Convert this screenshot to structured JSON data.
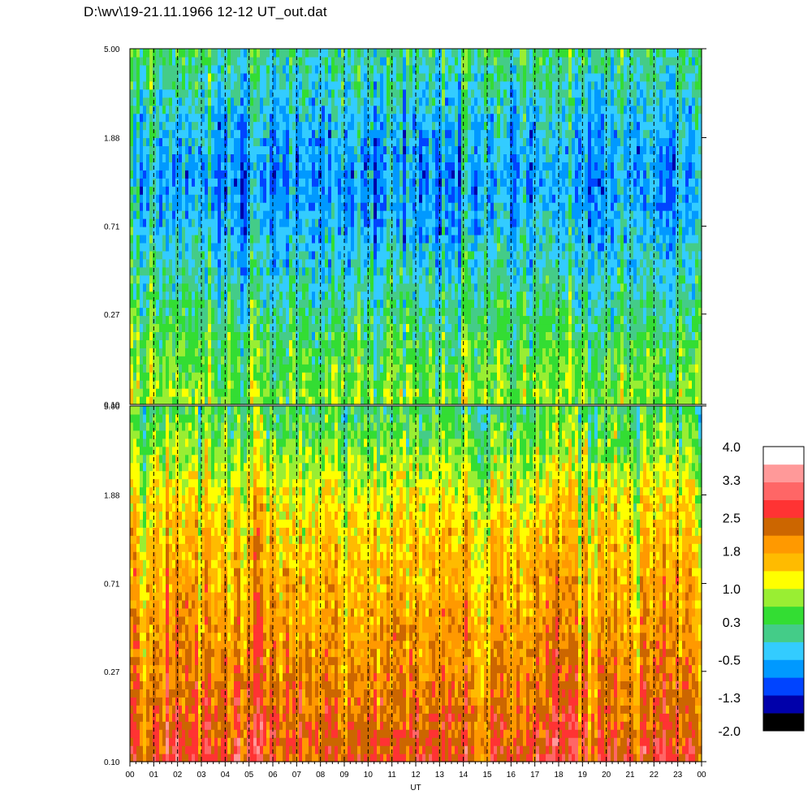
{
  "title": "D:\\wv\\19-21.11.1966  12-12 UT_out.dat",
  "chart_data": {
    "type": "heatmap",
    "panels": [
      {
        "name": "upper",
        "y_ticks": [
          "5.00",
          "1.88",
          "0.71",
          "0.27",
          "0.10"
        ],
        "y_tick_values": [
          5.0,
          1.88,
          0.71,
          0.27,
          0.1
        ],
        "ylim": [
          0.1,
          5.0
        ],
        "y_scale": "log",
        "level_profile": [
          0.8,
          0.5,
          0.2,
          -0.1,
          -0.4,
          -0.6,
          -0.4,
          0.2
        ],
        "profile_heights": [
          0.1,
          0.17,
          0.27,
          0.45,
          0.71,
          1.2,
          1.88,
          5.0
        ]
      },
      {
        "name": "lower",
        "y_ticks": [
          "5.00",
          "1.88",
          "0.71",
          "0.27",
          "0.10"
        ],
        "y_tick_values": [
          5.0,
          1.88,
          0.71,
          0.27,
          0.1
        ],
        "ylim": [
          0.1,
          5.0
        ],
        "y_scale": "log",
        "level_profile": [
          2.6,
          2.3,
          2.1,
          1.9,
          1.7,
          1.5,
          1.2,
          0.3
        ],
        "profile_heights": [
          0.1,
          0.17,
          0.27,
          0.45,
          0.71,
          1.2,
          1.88,
          5.0
        ]
      }
    ],
    "x_ticks": [
      "00",
      "01",
      "02",
      "03",
      "04",
      "05",
      "06",
      "07",
      "08",
      "09",
      "10",
      "11",
      "12",
      "13",
      "14",
      "15",
      "16",
      "17",
      "18",
      "19",
      "20",
      "21",
      "22",
      "23",
      "00"
    ],
    "xlabel": "UT",
    "colorbar": {
      "labels": [
        "4.0",
        "3.3",
        "2.5",
        "1.8",
        "1.0",
        "0.3",
        "-0.5",
        "-1.3",
        "-2.0"
      ],
      "label_values": [
        4.0,
        3.3,
        2.5,
        1.8,
        1.0,
        0.3,
        -0.5,
        -1.3,
        -2.0
      ],
      "range": [
        -2.0,
        4.0
      ],
      "colors": [
        "#000000",
        "#0000aa",
        "#0044ff",
        "#0099ff",
        "#33ccff",
        "#44cc88",
        "#33dd33",
        "#99ee33",
        "#ffff00",
        "#ffbb00",
        "#ff9900",
        "#cc6600",
        "#ff3333",
        "#ff6666",
        "#ff9999",
        "#ffffff"
      ]
    },
    "grid": "vertical dashed lines at each hour"
  }
}
